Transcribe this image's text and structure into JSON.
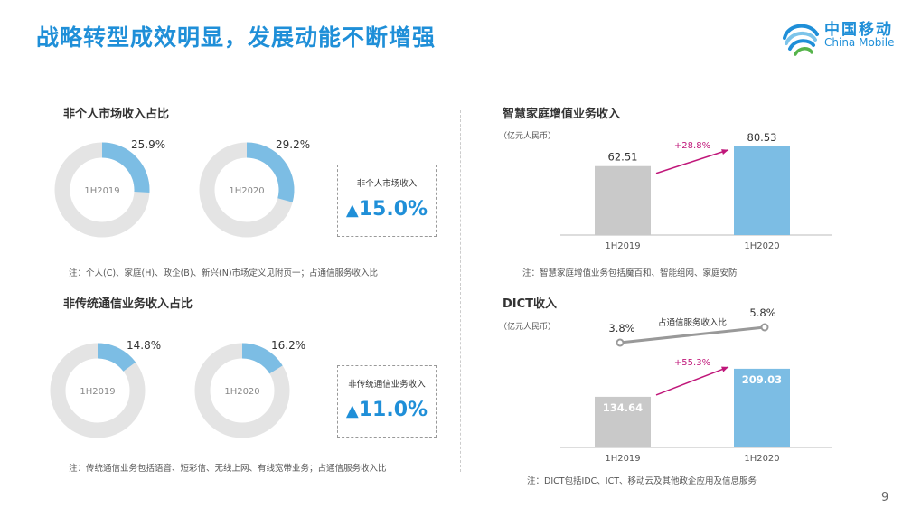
{
  "header": {
    "title": "战略转型成效明显，发展动能不断增强",
    "logo_cn": "中国移动",
    "logo_en": "China Mobile"
  },
  "page_number": "9",
  "colors": {
    "accent": "#1f8fd8",
    "bar_blue": "#7cbde4",
    "bar_gray": "#c9c9c9",
    "donut_bg": "#e4e4e4",
    "magenta": "#c0177a"
  },
  "panels": {
    "non_personal": {
      "title": "非个人市场收入占比",
      "note": "注：个人(C)、家庭(H)、政企(B)、新兴(N)市场定义见附页一；占通信服务收入比",
      "growth_label": "非个人市场收入",
      "growth_value": "15.0%"
    },
    "non_traditional": {
      "title": "非传统通信业务收入占比",
      "note": "注：传统通信业务包括语音、短彩信、无线上网、有线宽带业务；占通信服务收入比",
      "growth_label": "非传统通信业务收入",
      "growth_value": "11.0%"
    },
    "smart_home": {
      "title": "智慧家庭增值业务收入",
      "unit": "（亿元人民币）",
      "growth": "+28.8%",
      "note": "注：智慧家庭增值业务包括魔百和、智能组网、家庭安防"
    },
    "dict": {
      "title": "DICT收入",
      "unit": "（亿元人民币）",
      "growth": "+55.3%",
      "share_label": "占通信服务收入比",
      "note": "注：DICT包括IDC、ICT、移动云及其他政企应用及信息服务"
    }
  },
  "chart_data": [
    {
      "id": "non_personal_share",
      "type": "pie",
      "title": "非个人市场收入占比",
      "categories": [
        "1H2019",
        "1H2020"
      ],
      "values": [
        25.9,
        29.2
      ],
      "value_labels": [
        "25.9%",
        "29.2%"
      ]
    },
    {
      "id": "non_traditional_share",
      "type": "pie",
      "title": "非传统通信业务收入占比",
      "categories": [
        "1H2019",
        "1H2020"
      ],
      "values": [
        14.8,
        16.2
      ],
      "value_labels": [
        "14.8%",
        "16.2%"
      ]
    },
    {
      "id": "smart_home_revenue",
      "type": "bar",
      "title": "智慧家庭增值业务收入",
      "categories": [
        "1H2019",
        "1H2020"
      ],
      "values": [
        62.51,
        80.53
      ],
      "value_labels": [
        "62.51",
        "80.53"
      ],
      "ylabel": "（亿元人民币）",
      "ylim": [
        0,
        100
      ]
    },
    {
      "id": "dict_revenue",
      "type": "bar",
      "title": "DICT收入",
      "categories": [
        "1H2019",
        "1H2020"
      ],
      "values": [
        134.64,
        209.03
      ],
      "value_labels": [
        "134.64",
        "209.03"
      ],
      "ylabel": "（亿元人民币）",
      "ylim": [
        0,
        240
      ],
      "series": [
        {
          "name": "占通信服务收入比",
          "values": [
            3.8,
            5.8
          ],
          "value_labels": [
            "3.8%",
            "5.8%"
          ]
        }
      ]
    }
  ]
}
